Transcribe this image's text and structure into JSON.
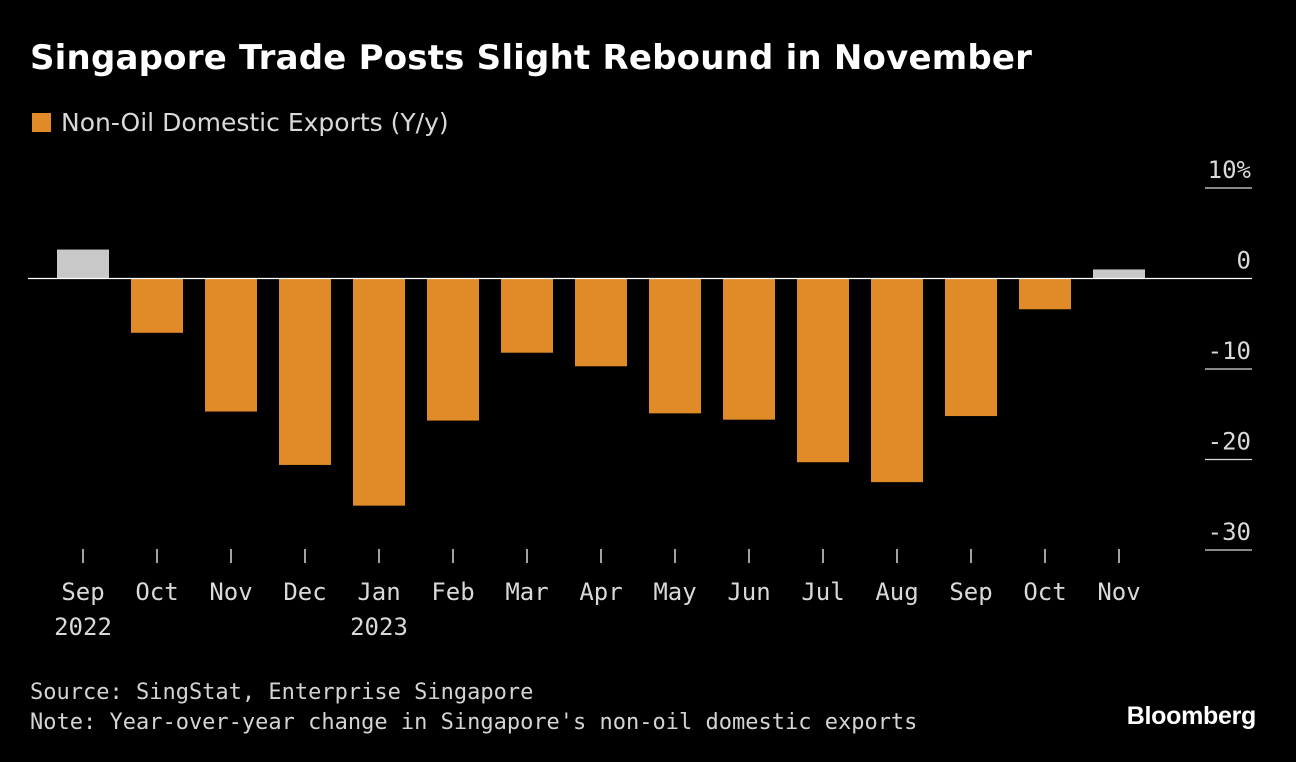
{
  "title": "Singapore Trade Posts Slight Rebound in November",
  "legend": {
    "label": "Non-Oil Domestic Exports (Y/y)",
    "color": "#e08b27"
  },
  "source": "Source: SingStat, Enterprise Singapore",
  "note": "Note: Year-over-year change in Singapore's non-oil domestic exports",
  "brand": "Bloomberg",
  "colors": {
    "negative": "#e08b27",
    "positive": "#c8c8c8",
    "axis_text": "#d9d9d9",
    "zero_line": "#ffffff"
  },
  "chart_data": {
    "type": "bar",
    "title": "Singapore Trade Posts Slight Rebound in November",
    "xlabel": "",
    "ylabel": "Non-Oil Domestic Exports (Y/y)",
    "ylim": [
      -30,
      10
    ],
    "y_ticks": [
      10,
      0,
      -10,
      -20,
      -30
    ],
    "y_tick_labels": [
      "10%",
      "0",
      "-10",
      "-20",
      "-30"
    ],
    "categories": [
      "Sep",
      "Oct",
      "Nov",
      "Dec",
      "Jan",
      "Feb",
      "Mar",
      "Apr",
      "May",
      "Jun",
      "Jul",
      "Aug",
      "Sep",
      "Oct",
      "Nov"
    ],
    "year_labels": [
      "2022",
      "",
      "",
      "",
      "2023",
      "",
      "",
      "",
      "",
      "",
      "",
      "",
      "",
      "",
      ""
    ],
    "values": [
      3.2,
      -6.0,
      -14.7,
      -20.6,
      -25.1,
      -15.7,
      -8.2,
      -9.7,
      -14.9,
      -15.6,
      -20.3,
      -22.5,
      -15.2,
      -3.4,
      1.0
    ],
    "series": [
      {
        "name": "Non-Oil Domestic Exports (Y/y)",
        "values": [
          3.2,
          -6.0,
          -14.7,
          -20.6,
          -25.1,
          -15.7,
          -8.2,
          -9.7,
          -14.9,
          -15.6,
          -20.3,
          -22.5,
          -15.2,
          -3.4,
          1.0
        ]
      }
    ],
    "grid": false,
    "legend_position": "top-left"
  }
}
